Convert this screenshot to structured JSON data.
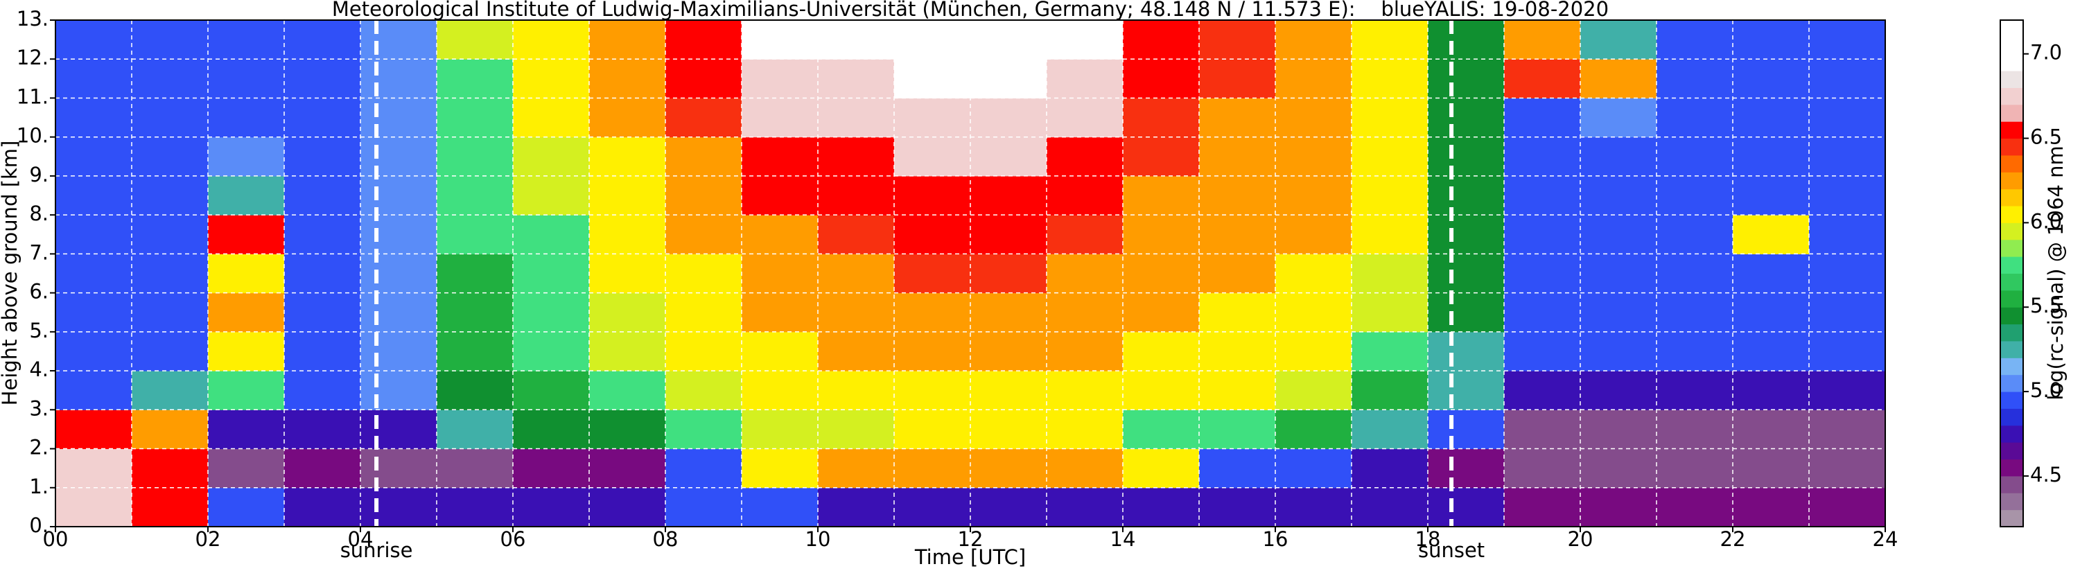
{
  "chart_data": {
    "type": "heatmap",
    "title": "Meteorological Institute of Ludwig-Maximilians-Universität (München, Germany; 48.148 N / 11.573 E):    blueYALIS: 19-08-2020",
    "xlabel": "Time [UTC]",
    "ylabel": "Height above ground [km]",
    "xbins": [
      0,
      1,
      2,
      3,
      4,
      5,
      6,
      7,
      8,
      9,
      10,
      11,
      12,
      13,
      14,
      15,
      16,
      17,
      18,
      19,
      20,
      21,
      22,
      23,
      24
    ],
    "ybins": [
      0,
      1,
      2,
      3,
      4,
      5,
      6,
      7,
      8,
      9,
      10,
      11,
      12,
      13
    ],
    "z": [
      [
        6.8,
        6.5,
        4.9,
        4.8,
        4.7,
        4.8,
        4.8,
        4.8,
        4.9,
        4.9,
        4.8,
        4.8,
        4.8,
        4.8,
        4.8,
        4.8,
        4.8,
        4.8,
        4.7,
        4.6,
        4.6,
        4.6,
        4.6,
        4.6
      ],
      [
        6.8,
        6.6,
        4.5,
        4.6,
        4.5,
        4.5,
        4.6,
        4.6,
        5.0,
        6.0,
        6.2,
        6.2,
        6.2,
        6.2,
        6.0,
        5.0,
        4.9,
        4.8,
        4.6,
        4.4,
        4.4,
        4.4,
        4.4,
        4.4
      ],
      [
        6.5,
        6.3,
        4.8,
        4.7,
        4.8,
        5.3,
        5.4,
        5.5,
        5.8,
        5.9,
        5.9,
        6.0,
        6.0,
        6.0,
        5.8,
        5.7,
        5.6,
        5.3,
        5.0,
        4.4,
        4.4,
        4.4,
        4.4,
        4.4
      ],
      [
        5.0,
        5.2,
        5.8,
        5.0,
        5.1,
        5.5,
        5.6,
        5.8,
        5.9,
        6.0,
        6.1,
        6.1,
        6.1,
        6.1,
        6.0,
        6.0,
        5.9,
        5.6,
        5.2,
        4.7,
        4.7,
        4.7,
        4.7,
        4.7
      ],
      [
        5.0,
        5.0,
        6.0,
        5.0,
        5.1,
        5.6,
        5.7,
        5.9,
        6.0,
        6.1,
        6.2,
        6.2,
        6.2,
        6.2,
        6.1,
        6.1,
        6.0,
        5.8,
        5.3,
        4.9,
        4.9,
        4.9,
        4.9,
        4.9
      ],
      [
        5.0,
        5.0,
        6.2,
        5.0,
        5.1,
        5.6,
        5.7,
        5.9,
        6.1,
        6.2,
        6.3,
        6.3,
        6.3,
        6.3,
        6.2,
        6.1,
        6.0,
        5.9,
        5.4,
        5.0,
        5.0,
        5.0,
        5.0,
        5.0
      ],
      [
        5.0,
        5.0,
        6.0,
        5.0,
        5.1,
        5.6,
        5.8,
        6.0,
        6.1,
        6.3,
        6.3,
        6.4,
        6.4,
        6.3,
        6.2,
        6.2,
        6.1,
        5.9,
        5.4,
        5.0,
        5.0,
        5.0,
        5.0,
        5.0
      ],
      [
        5.0,
        5.0,
        6.5,
        5.0,
        5.1,
        5.7,
        5.8,
        6.0,
        6.2,
        6.3,
        6.4,
        6.5,
        6.5,
        6.4,
        6.3,
        6.3,
        6.2,
        6.0,
        5.5,
        5.0,
        5.0,
        5.0,
        6.0,
        5.0
      ],
      [
        5.0,
        5.0,
        5.2,
        5.0,
        5.1,
        5.7,
        5.9,
        6.1,
        6.2,
        6.5,
        6.5,
        6.6,
        6.6,
        6.5,
        6.3,
        6.3,
        6.3,
        6.0,
        5.5,
        5.0,
        5.0,
        5.0,
        5.0,
        5.0
      ],
      [
        5.0,
        5.0,
        5.1,
        5.0,
        5.1,
        5.8,
        5.9,
        6.1,
        6.3,
        6.6,
        6.6,
        6.7,
        6.7,
        6.6,
        6.4,
        6.3,
        6.3,
        6.1,
        5.5,
        5.0,
        5.0,
        5.0,
        5.0,
        5.0
      ],
      [
        5.0,
        5.0,
        5.0,
        5.0,
        5.1,
        5.8,
        6.0,
        6.2,
        6.4,
        6.7,
        6.7,
        6.8,
        6.8,
        6.7,
        6.4,
        6.3,
        6.3,
        6.1,
        5.5,
        5.0,
        5.1,
        5.0,
        5.0,
        5.0
      ],
      [
        5.0,
        5.0,
        5.0,
        5.0,
        5.1,
        5.8,
        6.0,
        6.2,
        6.5,
        6.8,
        6.8,
        6.9,
        6.9,
        6.8,
        6.5,
        6.4,
        6.3,
        6.1,
        5.5,
        6.4,
        6.3,
        5.0,
        5.0,
        5.0
      ],
      [
        5.0,
        5.0,
        5.0,
        5.0,
        5.1,
        5.9,
        6.1,
        6.3,
        6.6,
        6.9,
        6.9,
        7.0,
        7.0,
        6.9,
        6.5,
        6.4,
        6.3,
        6.1,
        5.5,
        6.2,
        5.2,
        5.0,
        5.0,
        5.0
      ]
    ],
    "xlim": [
      0,
      24
    ],
    "ylim": [
      0,
      13
    ],
    "xticks": [
      {
        "value": 0,
        "label": "00"
      },
      {
        "value": 2,
        "label": "02"
      },
      {
        "value": 4,
        "label": "04"
      },
      {
        "value": 6,
        "label": "06"
      },
      {
        "value": 8,
        "label": "08"
      },
      {
        "value": 10,
        "label": "10"
      },
      {
        "value": 12,
        "label": "12"
      },
      {
        "value": 14,
        "label": "14"
      },
      {
        "value": 16,
        "label": "16"
      },
      {
        "value": 18,
        "label": "18"
      },
      {
        "value": 20,
        "label": "20"
      },
      {
        "value": 22,
        "label": "22"
      },
      {
        "value": 24,
        "label": "24"
      }
    ],
    "xminorticks": [
      1,
      3,
      5,
      7,
      9,
      11,
      13,
      15,
      17,
      19,
      21,
      23
    ],
    "yticks": [
      {
        "value": 0,
        "label": "0."
      },
      {
        "value": 1,
        "label": "1."
      },
      {
        "value": 2,
        "label": "2."
      },
      {
        "value": 3,
        "label": "3."
      },
      {
        "value": 4,
        "label": "4."
      },
      {
        "value": 5,
        "label": "5."
      },
      {
        "value": 6,
        "label": "6."
      },
      {
        "value": 7,
        "label": "7."
      },
      {
        "value": 8,
        "label": "8."
      },
      {
        "value": 9,
        "label": "9."
      },
      {
        "value": 10,
        "label": "10."
      },
      {
        "value": 11,
        "label": "11."
      },
      {
        "value": 12,
        "label": "12."
      },
      {
        "value": 13,
        "label": "13."
      }
    ],
    "grid": true,
    "grid_color": "#ffffff",
    "events": [
      {
        "label": "sunrise",
        "x": 4.21
      },
      {
        "label": "sunset",
        "x": 18.31
      }
    ],
    "colorbar": {
      "label": "log(rc-signal) @ 1064 nm",
      "lim": [
        4.2,
        7.2
      ],
      "ticks": [
        {
          "value": 4.5,
          "label": "4.5"
        },
        {
          "value": 5.0,
          "label": "5.0"
        },
        {
          "value": 5.5,
          "label": "5.5"
        },
        {
          "value": 6.0,
          "label": "6.0"
        },
        {
          "value": 6.5,
          "label": "6.5"
        },
        {
          "value": 7.0,
          "label": "7.0"
        }
      ],
      "colors": [
        "#a894a8",
        "#94709a",
        "#844c8c",
        "#780a80",
        "#5a0a96",
        "#3a10b4",
        "#2630dc",
        "#3050f8",
        "#5a8cf8",
        "#78b4f4",
        "#40b0a8",
        "#20a070",
        "#109030",
        "#20b040",
        "#30c860",
        "#40e080",
        "#90ec50",
        "#d4f020",
        "#fff000",
        "#ffc800",
        "#ff9c00",
        "#ff6a00",
        "#f83010",
        "#ff0000",
        "#f0b4b4",
        "#f2d0d0",
        "#ece4e4",
        "#ffffff",
        "#ffffff",
        "#ffffff"
      ]
    }
  }
}
